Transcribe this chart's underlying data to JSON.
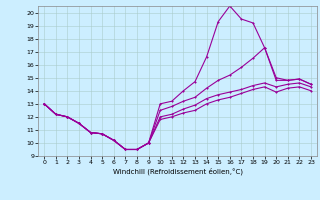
{
  "xlabel": "Windchill (Refroidissement éolien,°C)",
  "bg_color": "#cceeff",
  "grid_color": "#aacccc",
  "line_color": "#990099",
  "xlim": [
    -0.5,
    23.5
  ],
  "ylim": [
    9,
    20.5
  ],
  "xticks": [
    0,
    1,
    2,
    3,
    4,
    5,
    6,
    7,
    8,
    9,
    10,
    11,
    12,
    13,
    14,
    15,
    16,
    17,
    18,
    19,
    20,
    21,
    22,
    23
  ],
  "yticks": [
    9,
    10,
    11,
    12,
    13,
    14,
    15,
    16,
    17,
    18,
    19,
    20
  ],
  "series1_x": [
    0,
    1,
    2,
    3,
    4,
    5,
    6,
    7,
    8,
    9,
    10,
    11,
    12,
    13,
    14,
    15,
    16,
    17,
    18,
    19,
    20,
    21,
    22,
    23
  ],
  "series1_y": [
    13.0,
    12.2,
    12.0,
    11.5,
    10.8,
    10.7,
    10.2,
    9.5,
    9.5,
    10.0,
    13.0,
    13.2,
    14.0,
    14.7,
    16.6,
    19.3,
    20.5,
    19.5,
    19.2,
    17.3,
    15.0,
    14.8,
    14.9,
    14.5
  ],
  "series2_x": [
    0,
    1,
    2,
    3,
    4,
    5,
    6,
    7,
    8,
    9,
    10,
    11,
    12,
    13,
    14,
    15,
    16,
    17,
    18,
    19,
    20,
    21,
    22,
    23
  ],
  "series2_y": [
    13.0,
    12.2,
    12.0,
    11.5,
    10.8,
    10.7,
    10.2,
    9.5,
    9.5,
    10.0,
    12.5,
    12.8,
    13.2,
    13.5,
    14.2,
    14.8,
    15.2,
    15.8,
    16.5,
    17.3,
    14.8,
    14.8,
    14.9,
    14.5
  ],
  "series3_x": [
    0,
    1,
    2,
    3,
    4,
    5,
    6,
    7,
    8,
    9,
    10,
    11,
    12,
    13,
    14,
    15,
    16,
    17,
    18,
    19,
    20,
    21,
    22,
    23
  ],
  "series3_y": [
    13.0,
    12.2,
    12.0,
    11.5,
    10.8,
    10.7,
    10.2,
    9.5,
    9.5,
    10.0,
    12.0,
    12.2,
    12.6,
    12.9,
    13.4,
    13.7,
    13.9,
    14.1,
    14.4,
    14.6,
    14.3,
    14.5,
    14.6,
    14.3
  ],
  "series4_x": [
    0,
    1,
    2,
    3,
    4,
    5,
    6,
    7,
    8,
    9,
    10,
    11,
    12,
    13,
    14,
    15,
    16,
    17,
    18,
    19,
    20,
    21,
    22,
    23
  ],
  "series4_y": [
    13.0,
    12.2,
    12.0,
    11.5,
    10.8,
    10.7,
    10.2,
    9.5,
    9.5,
    10.0,
    11.8,
    12.0,
    12.3,
    12.5,
    13.0,
    13.3,
    13.5,
    13.8,
    14.1,
    14.3,
    13.9,
    14.2,
    14.3,
    14.0
  ]
}
